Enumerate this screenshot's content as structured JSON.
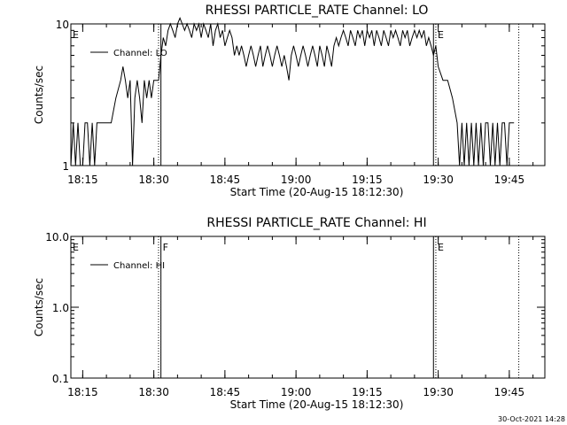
{
  "footer_timestamp": "30-Oct-2021 14:28",
  "chart_data": [
    {
      "type": "line",
      "title": "RHESSI PARTICLE_RATE Channel: LO",
      "xlabel": "Start Time (20-Aug-15 18:12:30)",
      "ylabel": "Counts/sec",
      "y_scale": "log",
      "ylim": [
        1,
        10
      ],
      "y_ticks": [
        {
          "value": 1,
          "label": "1"
        },
        {
          "value": 10,
          "label": "10"
        }
      ],
      "xlim": [
        "18:12:30",
        "19:52:30"
      ],
      "x_ticks": [
        "18:15",
        "18:30",
        "18:45",
        "19:00",
        "19:15",
        "19:30",
        "19:45"
      ],
      "legend": {
        "label": "Channel: LO",
        "placement": "top-left"
      },
      "grid": false,
      "markers": [
        {
          "time": "18:12:30",
          "label": "E",
          "style": "none"
        },
        {
          "time": "18:31:00",
          "label": "",
          "style": "dotted"
        },
        {
          "time": "18:31:30",
          "label": "",
          "style": "solid"
        },
        {
          "time": "19:29:00",
          "label": "",
          "style": "solid"
        },
        {
          "time": "19:29:30",
          "label": "E",
          "style": "dotted"
        },
        {
          "time": "19:47:00",
          "label": "",
          "style": "dotted"
        }
      ],
      "series": [
        {
          "values": [
            [
              "18:12:30",
              1
            ],
            [
              "18:13:00",
              2
            ],
            [
              "18:13:30",
              1
            ],
            [
              "18:14:00",
              2
            ],
            [
              "18:14:30",
              1
            ],
            [
              "18:15:00",
              1
            ],
            [
              "18:15:30",
              2
            ],
            [
              "18:16:00",
              2
            ],
            [
              "18:16:30",
              1
            ],
            [
              "18:17:00",
              2
            ],
            [
              "18:17:30",
              1
            ],
            [
              "18:18:00",
              2
            ],
            [
              "18:19:00",
              2
            ],
            [
              "18:20:00",
              2
            ],
            [
              "18:21:00",
              2
            ],
            [
              "18:22:00",
              3
            ],
            [
              "18:23:00",
              4
            ],
            [
              "18:23:30",
              5
            ],
            [
              "18:24:00",
              4
            ],
            [
              "18:24:30",
              3
            ],
            [
              "18:25:00",
              4
            ],
            [
              "18:25:30",
              1
            ],
            [
              "18:26:00",
              3
            ],
            [
              "18:26:30",
              4
            ],
            [
              "18:27:00",
              3
            ],
            [
              "18:27:30",
              2
            ],
            [
              "18:28:00",
              4
            ],
            [
              "18:28:30",
              3
            ],
            [
              "18:29:00",
              4
            ],
            [
              "18:29:30",
              3
            ],
            [
              "18:30:00",
              4
            ],
            [
              "18:31:00",
              4
            ],
            [
              "18:31:30",
              6
            ],
            [
              "18:32:00",
              8
            ],
            [
              "18:32:30",
              7
            ],
            [
              "18:33:00",
              9
            ],
            [
              "18:33:30",
              10
            ],
            [
              "18:34:00",
              9
            ],
            [
              "18:34:30",
              8
            ],
            [
              "18:35:00",
              10
            ],
            [
              "18:35:30",
              11
            ],
            [
              "18:36:00",
              10
            ],
            [
              "18:36:30",
              9
            ],
            [
              "18:37:00",
              10
            ],
            [
              "18:37:30",
              9
            ],
            [
              "18:38:00",
              8
            ],
            [
              "18:38:30",
              10
            ],
            [
              "18:39:00",
              9
            ],
            [
              "18:39:30",
              10
            ],
            [
              "18:40:00",
              8
            ],
            [
              "18:40:30",
              10
            ],
            [
              "18:41:00",
              9
            ],
            [
              "18:41:30",
              8
            ],
            [
              "18:42:00",
              10
            ],
            [
              "18:42:30",
              7
            ],
            [
              "18:43:00",
              9
            ],
            [
              "18:43:30",
              10
            ],
            [
              "18:44:00",
              8
            ],
            [
              "18:44:30",
              9
            ],
            [
              "18:45:00",
              7
            ],
            [
              "18:45:30",
              8
            ],
            [
              "18:46:00",
              9
            ],
            [
              "18:46:30",
              8
            ],
            [
              "18:47:00",
              6
            ],
            [
              "18:47:30",
              7
            ],
            [
              "18:48:00",
              6
            ],
            [
              "18:48:30",
              7
            ],
            [
              "18:49:00",
              6
            ],
            [
              "18:49:30",
              5
            ],
            [
              "18:50:00",
              6
            ],
            [
              "18:50:30",
              7
            ],
            [
              "18:51:00",
              6
            ],
            [
              "18:51:30",
              5
            ],
            [
              "18:52:00",
              6
            ],
            [
              "18:52:30",
              7
            ],
            [
              "18:53:00",
              5
            ],
            [
              "18:53:30",
              6
            ],
            [
              "18:54:00",
              7
            ],
            [
              "18:54:30",
              6
            ],
            [
              "18:55:00",
              5
            ],
            [
              "18:55:30",
              6
            ],
            [
              "18:56:00",
              7
            ],
            [
              "18:56:30",
              6
            ],
            [
              "18:57:00",
              5
            ],
            [
              "18:57:30",
              6
            ],
            [
              "18:58:00",
              5
            ],
            [
              "18:58:30",
              4
            ],
            [
              "18:59:00",
              6
            ],
            [
              "18:59:30",
              7
            ],
            [
              "19:00:00",
              6
            ],
            [
              "19:00:30",
              5
            ],
            [
              "19:01:00",
              6
            ],
            [
              "19:01:30",
              7
            ],
            [
              "19:02:00",
              6
            ],
            [
              "19:02:30",
              5
            ],
            [
              "19:03:00",
              6
            ],
            [
              "19:03:30",
              7
            ],
            [
              "19:04:00",
              6
            ],
            [
              "19:04:30",
              5
            ],
            [
              "19:05:00",
              7
            ],
            [
              "19:05:30",
              6
            ],
            [
              "19:06:00",
              5
            ],
            [
              "19:06:30",
              7
            ],
            [
              "19:07:00",
              6
            ],
            [
              "19:07:30",
              5
            ],
            [
              "19:08:00",
              7
            ],
            [
              "19:08:30",
              8
            ],
            [
              "19:09:00",
              7
            ],
            [
              "19:09:30",
              8
            ],
            [
              "19:10:00",
              9
            ],
            [
              "19:10:30",
              8
            ],
            [
              "19:11:00",
              7
            ],
            [
              "19:11:30",
              9
            ],
            [
              "19:12:00",
              8
            ],
            [
              "19:12:30",
              7
            ],
            [
              "19:13:00",
              9
            ],
            [
              "19:13:30",
              8
            ],
            [
              "19:14:00",
              9
            ],
            [
              "19:14:30",
              7
            ],
            [
              "19:15:00",
              9
            ],
            [
              "19:15:30",
              8
            ],
            [
              "19:16:00",
              9
            ],
            [
              "19:16:30",
              7
            ],
            [
              "19:17:00",
              9
            ],
            [
              "19:17:30",
              8
            ],
            [
              "19:18:00",
              7
            ],
            [
              "19:18:30",
              9
            ],
            [
              "19:19:00",
              8
            ],
            [
              "19:19:30",
              7
            ],
            [
              "19:20:00",
              9
            ],
            [
              "19:20:30",
              8
            ],
            [
              "19:21:00",
              9
            ],
            [
              "19:21:30",
              8
            ],
            [
              "19:22:00",
              7
            ],
            [
              "19:22:30",
              9
            ],
            [
              "19:23:00",
              8
            ],
            [
              "19:23:30",
              9
            ],
            [
              "19:24:00",
              7
            ],
            [
              "19:24:30",
              8
            ],
            [
              "19:25:00",
              9
            ],
            [
              "19:25:30",
              8
            ],
            [
              "19:26:00",
              9
            ],
            [
              "19:26:30",
              8
            ],
            [
              "19:27:00",
              9
            ],
            [
              "19:27:30",
              7
            ],
            [
              "19:28:00",
              8
            ],
            [
              "19:28:30",
              7
            ],
            [
              "19:29:00",
              6
            ],
            [
              "19:29:30",
              7
            ],
            [
              "19:30:00",
              5
            ],
            [
              "19:31:00",
              4
            ],
            [
              "19:32:00",
              4
            ],
            [
              "19:33:00",
              3
            ],
            [
              "19:34:00",
              2
            ],
            [
              "19:34:30",
              1
            ],
            [
              "19:35:00",
              2
            ],
            [
              "19:35:30",
              1
            ],
            [
              "19:36:00",
              2
            ],
            [
              "19:36:30",
              1
            ],
            [
              "19:37:00",
              2
            ],
            [
              "19:37:30",
              1
            ],
            [
              "19:38:00",
              2
            ],
            [
              "19:38:30",
              1
            ],
            [
              "19:39:00",
              2
            ],
            [
              "19:39:30",
              1
            ],
            [
              "19:40:00",
              2
            ],
            [
              "19:40:30",
              2
            ],
            [
              "19:41:00",
              1
            ],
            [
              "19:41:30",
              2
            ],
            [
              "19:42:00",
              1
            ],
            [
              "19:42:30",
              2
            ],
            [
              "19:43:00",
              1
            ],
            [
              "19:43:30",
              2
            ],
            [
              "19:44:00",
              2
            ],
            [
              "19:44:30",
              1
            ],
            [
              "19:45:00",
              2
            ],
            [
              "19:45:30",
              2
            ],
            [
              "19:46:00",
              2
            ]
          ]
        }
      ]
    },
    {
      "type": "line",
      "title": "RHESSI PARTICLE_RATE Channel: HI",
      "xlabel": "Start Time (20-Aug-15 18:12:30)",
      "ylabel": "Counts/sec",
      "y_scale": "log",
      "ylim": [
        0.1,
        10
      ],
      "y_ticks": [
        {
          "value": 0.1,
          "label": "0.1"
        },
        {
          "value": 1,
          "label": "1.0"
        },
        {
          "value": 10,
          "label": "10.0"
        }
      ],
      "xlim": [
        "18:12:30",
        "19:52:30"
      ],
      "x_ticks": [
        "18:15",
        "18:30",
        "18:45",
        "19:00",
        "19:15",
        "19:30",
        "19:45"
      ],
      "legend": {
        "label": "Channel: HI",
        "placement": "top-left"
      },
      "grid": false,
      "markers": [
        {
          "time": "18:12:30",
          "label": "E",
          "style": "none"
        },
        {
          "time": "18:31:00",
          "label": "",
          "style": "dotted"
        },
        {
          "time": "18:31:30",
          "label": "F",
          "style": "solid"
        },
        {
          "time": "19:29:00",
          "label": "",
          "style": "solid"
        },
        {
          "time": "19:29:30",
          "label": "E",
          "style": "dotted"
        },
        {
          "time": "19:47:00",
          "label": "",
          "style": "dotted"
        }
      ],
      "series": [
        {
          "values": []
        }
      ]
    }
  ]
}
